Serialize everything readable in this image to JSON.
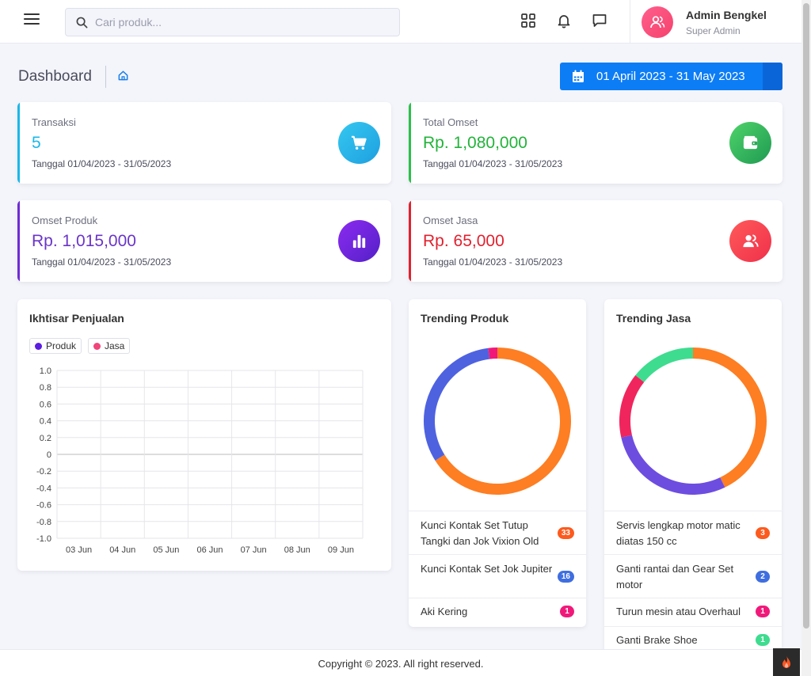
{
  "header": {
    "search_placeholder": "Cari produk...",
    "user_name": "Admin Bengkel",
    "user_role": "Super Admin"
  },
  "page": {
    "title": "Dashboard",
    "date_range": "01 April 2023 - 31 May 2023"
  },
  "stats": [
    {
      "label": "Transaksi",
      "value": "5",
      "sub": "Tanggal 01/04/2023 - 31/05/2023",
      "color": "#1aa3e0",
      "icon": "cart-icon"
    },
    {
      "label": "Total Omset",
      "value": "Rp. 1,080,000",
      "sub": "Tanggal 01/04/2023 - 31/05/2023",
      "color": "#22b33a",
      "icon": "wallet-icon"
    },
    {
      "label": "Omset Produk",
      "value": "Rp. 1,015,000",
      "sub": "Tanggal 01/04/2023 - 31/05/2023",
      "color": "#6f2bd4",
      "icon": "bar-chart-icon"
    },
    {
      "label": "Omset Jasa",
      "value": "Rp. 65,000",
      "sub": "Tanggal 01/04/2023 - 31/05/2023",
      "color": "#e0222f",
      "icon": "users-icon"
    }
  ],
  "sales_chart": {
    "title": "Ikhtisar Penjualan"
  },
  "chart_data": [
    {
      "type": "line",
      "title": "Ikhtisar Penjualan",
      "categories": [
        "03 Jun",
        "04 Jun",
        "05 Jun",
        "06 Jun",
        "07 Jun",
        "08 Jun",
        "09 Jun"
      ],
      "series": [
        {
          "name": "Produk",
          "values": [
            0,
            0,
            0,
            0,
            0,
            0,
            0
          ],
          "color": "#5b1de0"
        },
        {
          "name": "Jasa",
          "values": [
            0,
            0,
            0,
            0,
            0,
            0,
            0
          ],
          "color": "#f0447a"
        }
      ],
      "yticks": [
        "1.0",
        "0.8",
        "0.6",
        "0.4",
        "0.2",
        "0",
        "-0.2",
        "-0.4",
        "-0.6",
        "-0.8",
        "-1.0"
      ],
      "ylim": [
        -1.0,
        1.0
      ],
      "grid": true,
      "legend": "top-left"
    },
    {
      "type": "pie",
      "title": "Trending Produk",
      "labels": [
        "Kunci Kontak Set Tutup Tangki dan Jok Vixion Old",
        "Kunci Kontak Set Jok Jupiter",
        "Aki Kering"
      ],
      "values": [
        33,
        16,
        1
      ],
      "colors": [
        "#fd7e23",
        "#4e62e0",
        "#f0197a"
      ]
    },
    {
      "type": "pie",
      "title": "Trending Jasa",
      "labels": [
        "Servis lengkap motor matic diatas 150 cc",
        "Ganti rantai dan Gear Set motor",
        "Turun mesin atau Overhaul",
        "Ganti Brake Shoe"
      ],
      "values": [
        3,
        2,
        1,
        1
      ],
      "colors": [
        "#fd7e23",
        "#6d4de0",
        "#f0255e",
        "#3edc8f"
      ]
    }
  ],
  "trending_produk": {
    "title": "Trending Produk",
    "items": [
      {
        "label": "Kunci Kontak Set Tutup Tangki dan Jok Vixion Old",
        "count": "33",
        "color": "#fd5a1e"
      },
      {
        "label": "Kunci Kontak Set Jok Jupiter",
        "count": "16",
        "color": "#3f6ee0"
      },
      {
        "label": "Aki Kering",
        "count": "1",
        "color": "#f0197a"
      }
    ]
  },
  "trending_jasa": {
    "title": "Trending Jasa",
    "items": [
      {
        "label": "Servis lengkap motor matic diatas 150 cc",
        "count": "3",
        "color": "#fd5a1e"
      },
      {
        "label": "Ganti rantai dan Gear Set motor",
        "count": "2",
        "color": "#3f6ee0"
      },
      {
        "label": "Turun mesin atau Overhaul",
        "count": "1",
        "color": "#f0197a"
      },
      {
        "label": "Ganti Brake Shoe",
        "count": "1",
        "color": "#3edc8f"
      }
    ]
  },
  "footer": {
    "copyright": "Copyright © 2023. All right reserved."
  }
}
